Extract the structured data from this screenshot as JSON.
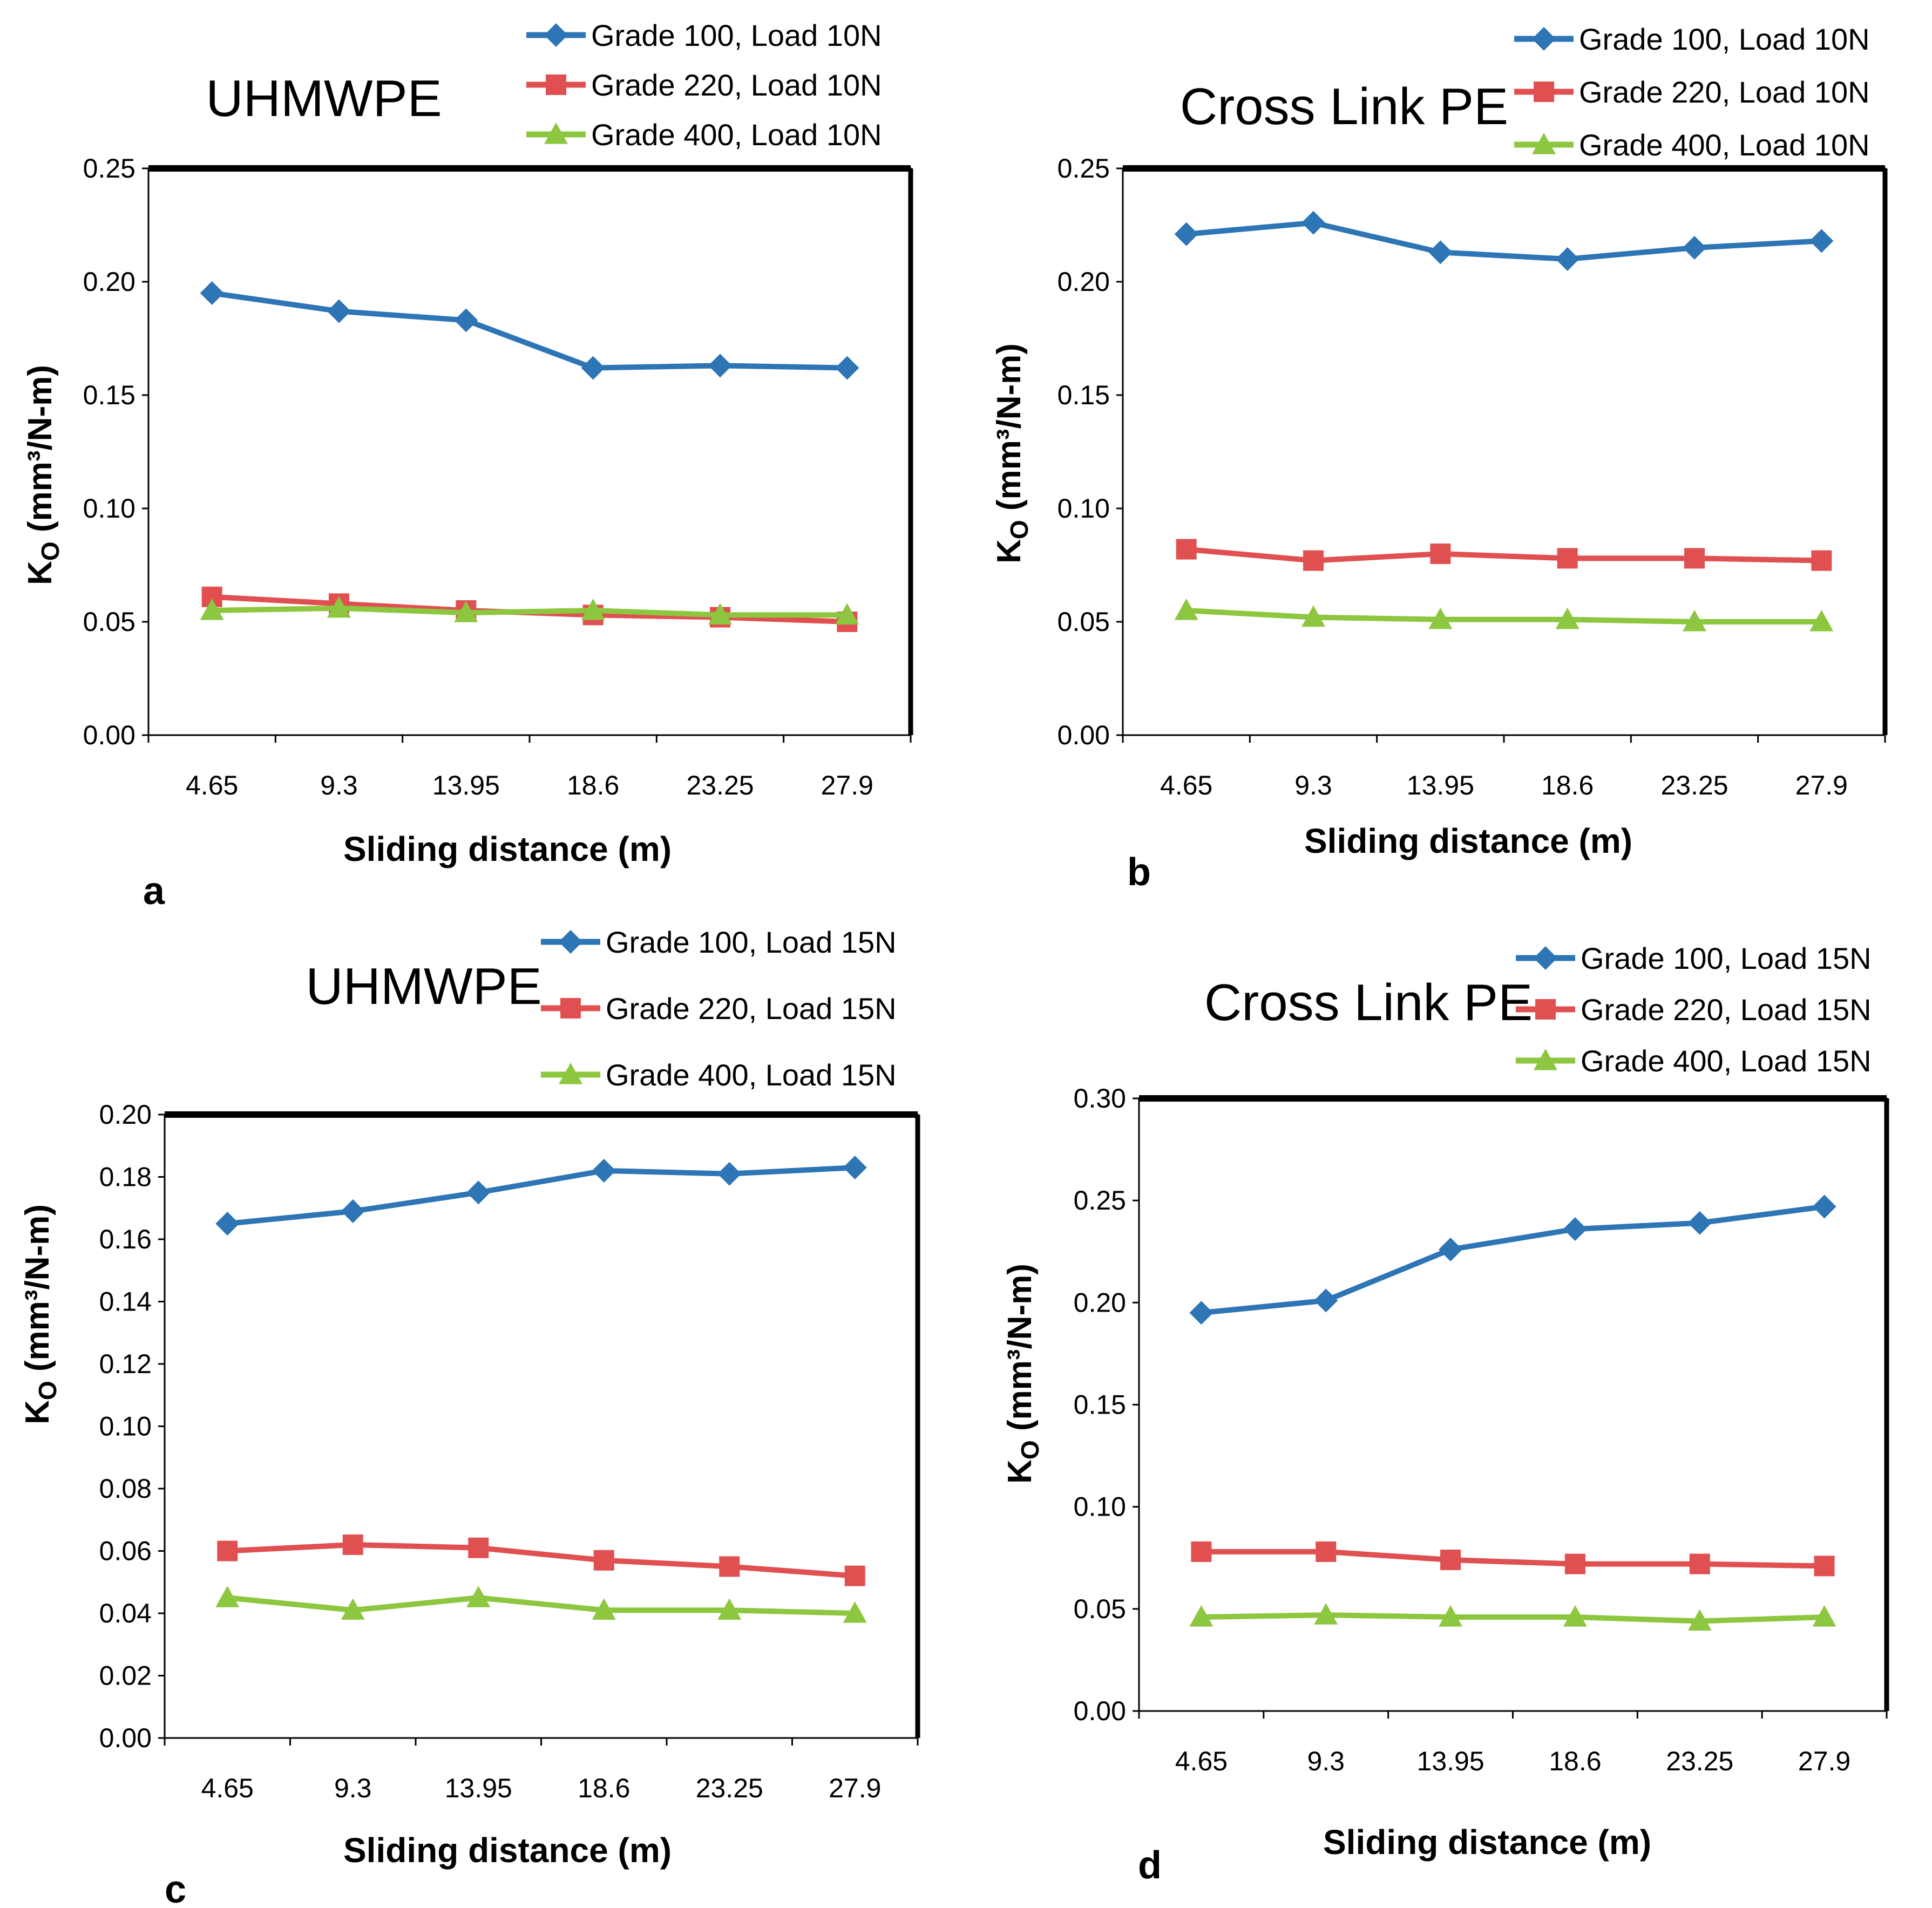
{
  "chart_data": [
    {
      "type": "line",
      "panel_label": "a",
      "title": "UHMWPE",
      "xlabel": "Sliding distance (m)",
      "ylabel_main": "K",
      "ylabel_sub": "O",
      "ylabel_rest": " (mm³/N-m)",
      "categories": [
        "4.65",
        "9.3",
        "13.95",
        "18.6",
        "23.25",
        "27.9"
      ],
      "ylim": [
        0,
        0.25
      ],
      "yticks": [
        "0.00",
        "0.05",
        "0.10",
        "0.15",
        "0.20",
        "0.25"
      ],
      "legend_position": "top-right",
      "series": [
        {
          "name": "Grade 100, Load 10N",
          "color": "#2E75B6",
          "marker": "diamond",
          "values": [
            0.195,
            0.187,
            0.183,
            0.162,
            0.163,
            0.162
          ]
        },
        {
          "name": "Grade 220, Load 10N",
          "color": "#E05050",
          "marker": "square",
          "values": [
            0.061,
            0.058,
            0.055,
            0.053,
            0.052,
            0.05
          ]
        },
        {
          "name": "Grade 400, Load 10N",
          "color": "#8DC63F",
          "marker": "triangle",
          "values": [
            0.055,
            0.056,
            0.054,
            0.055,
            0.053,
            0.053
          ]
        }
      ]
    },
    {
      "type": "line",
      "panel_label": "b",
      "title": "Cross Link PE",
      "xlabel": "Sliding distance (m)",
      "ylabel_main": "K",
      "ylabel_sub": "O",
      "ylabel_rest": " (mm³/N-m)",
      "categories": [
        "4.65",
        "9.3",
        "13.95",
        "18.6",
        "23.25",
        "27.9"
      ],
      "ylim": [
        0,
        0.25
      ],
      "yticks": [
        "0.00",
        "0.05",
        "0.10",
        "0.15",
        "0.20",
        "0.25"
      ],
      "legend_position": "top-right",
      "series": [
        {
          "name": "Grade 100, Load 10N",
          "color": "#2E75B6",
          "marker": "diamond",
          "values": [
            0.221,
            0.226,
            0.213,
            0.21,
            0.215,
            0.218
          ]
        },
        {
          "name": "Grade 220, Load 10N",
          "color": "#E05050",
          "marker": "square",
          "values": [
            0.082,
            0.077,
            0.08,
            0.078,
            0.078,
            0.077
          ]
        },
        {
          "name": "Grade 400, Load 10N",
          "color": "#8DC63F",
          "marker": "triangle",
          "values": [
            0.055,
            0.052,
            0.051,
            0.051,
            0.05,
            0.05
          ]
        }
      ]
    },
    {
      "type": "line",
      "panel_label": "c",
      "title": "UHMWPE",
      "xlabel": "Sliding distance (m)",
      "ylabel_main": "K",
      "ylabel_sub": "O",
      "ylabel_rest": " (mm³/N-m)",
      "categories": [
        "4.65",
        "9.3",
        "13.95",
        "18.6",
        "23.25",
        "27.9"
      ],
      "ylim": [
        0,
        0.2
      ],
      "yticks": [
        "0.00",
        "0.02",
        "0.04",
        "0.06",
        "0.08",
        "0.10",
        "0.12",
        "0.14",
        "0.16",
        "0.18",
        "0.20"
      ],
      "legend_position": "top-right",
      "series": [
        {
          "name": "Grade 100, Load 15N",
          "color": "#2E75B6",
          "marker": "diamond",
          "values": [
            0.165,
            0.169,
            0.175,
            0.182,
            0.181,
            0.183
          ]
        },
        {
          "name": "Grade 220, Load 15N",
          "color": "#E05050",
          "marker": "square",
          "values": [
            0.06,
            0.062,
            0.061,
            0.057,
            0.055,
            0.052
          ]
        },
        {
          "name": "Grade 400, Load 15N",
          "color": "#8DC63F",
          "marker": "triangle",
          "values": [
            0.045,
            0.041,
            0.045,
            0.041,
            0.041,
            0.04
          ]
        }
      ]
    },
    {
      "type": "line",
      "panel_label": "d",
      "title": "Cross Link PE",
      "xlabel": "Sliding distance (m)",
      "ylabel_main": "K",
      "ylabel_sub": "O",
      "ylabel_rest": " (mm³/N-m)",
      "categories": [
        "4.65",
        "9.3",
        "13.95",
        "18.6",
        "23.25",
        "27.9"
      ],
      "ylim": [
        0,
        0.3
      ],
      "yticks": [
        "0.00",
        "0.05",
        "0.10",
        "0.15",
        "0.20",
        "0.25",
        "0.30"
      ],
      "legend_position": "top-right",
      "series": [
        {
          "name": "Grade 100, Load 15N",
          "color": "#2E75B6",
          "marker": "diamond",
          "values": [
            0.195,
            0.201,
            0.226,
            0.236,
            0.239,
            0.247
          ]
        },
        {
          "name": "Grade 220, Load 15N",
          "color": "#E05050",
          "marker": "square",
          "values": [
            0.078,
            0.078,
            0.074,
            0.072,
            0.072,
            0.071
          ]
        },
        {
          "name": "Grade 400, Load 15N",
          "color": "#8DC63F",
          "marker": "triangle",
          "values": [
            0.046,
            0.047,
            0.046,
            0.046,
            0.044,
            0.046
          ]
        }
      ]
    }
  ]
}
